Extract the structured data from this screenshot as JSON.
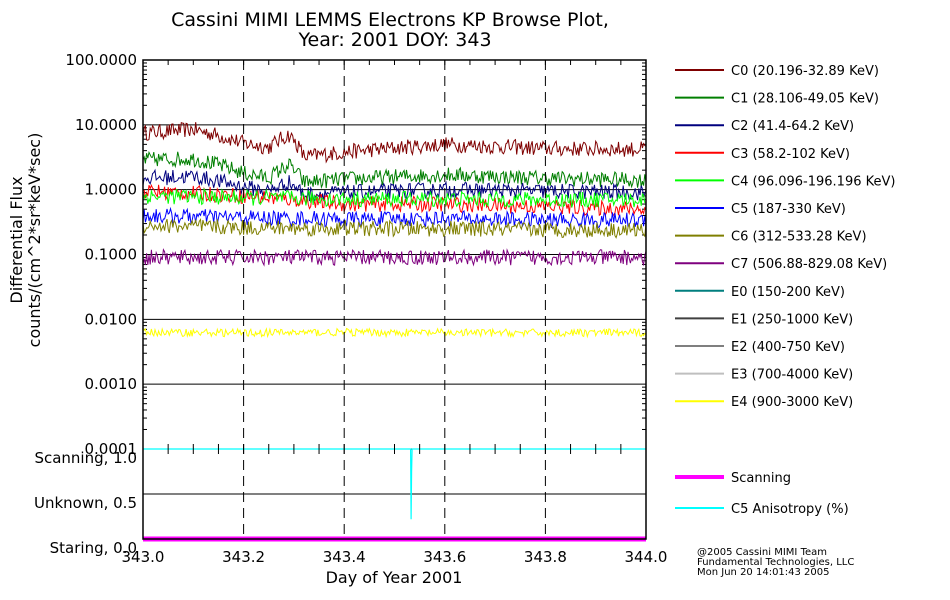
{
  "chart_data": [
    {
      "type": "line",
      "title": "Cassini MIMI LEMMS Electrons KP Browse Plot,",
      "subtitle": "Year: 2001 DOY: 343",
      "xlabel": "Day of Year 2001",
      "ylabel": "Differential Flux",
      "ylabel2": "counts/(cm^2*sr*keV*sec)",
      "xlim": [
        343.0,
        344.0
      ],
      "ylim": [
        0.0001,
        100.0
      ],
      "yscale": "log",
      "x_ticks": [
        "343.0",
        "343.2",
        "343.4",
        "343.6",
        "343.8",
        "344.0"
      ],
      "y_ticks": [
        "100.0000",
        "10.0000",
        "1.0000",
        "0.1000",
        "0.0100",
        "0.0010",
        "0.0001"
      ],
      "grid": true,
      "legend_position": "right",
      "series": [
        {
          "name": "C0 (20.196-32.89 KeV)",
          "color": "#7f0000",
          "x": [
            343.0,
            343.1,
            343.2,
            343.25,
            343.29,
            343.32,
            343.4,
            343.6,
            343.8,
            344.0
          ],
          "values": [
            7.5,
            8.5,
            5.2,
            4.5,
            7.0,
            3.2,
            3.8,
            5.0,
            4.3,
            4.2
          ]
        },
        {
          "name": "C1 (28.106-49.05 KeV)",
          "color": "#007f00",
          "x": [
            343.0,
            343.1,
            343.2,
            343.25,
            343.29,
            343.32,
            343.4,
            343.6,
            343.8,
            344.0
          ],
          "values": [
            2.9,
            3.0,
            1.8,
            1.5,
            2.4,
            1.3,
            1.45,
            1.7,
            1.5,
            1.4
          ]
        },
        {
          "name": "C2 (41.4-64.2 KeV)",
          "color": "#00007f",
          "x": [
            343.0,
            343.1,
            343.2,
            343.25,
            343.29,
            343.32,
            343.4,
            343.6,
            343.8,
            344.0
          ],
          "values": [
            1.5,
            1.6,
            1.1,
            0.95,
            1.3,
            0.85,
            0.9,
            1.0,
            0.95,
            0.9
          ]
        },
        {
          "name": "C3 (58.2-102 KeV)",
          "color": "#ff0000",
          "x": [
            343.0,
            343.2,
            343.4,
            343.6,
            343.8,
            344.0
          ],
          "values": [
            0.95,
            0.8,
            0.6,
            0.6,
            0.55,
            0.5
          ]
        },
        {
          "name": "C4 (96.096-196.196 KeV)",
          "color": "#00ff00",
          "x": [
            343.0,
            343.2,
            343.4,
            343.6,
            343.8,
            344.0
          ],
          "values": [
            0.8,
            0.75,
            0.72,
            0.72,
            0.7,
            0.7
          ]
        },
        {
          "name": "C5 (187-330 KeV)",
          "color": "#0000ff",
          "x": [
            343.0,
            343.2,
            343.4,
            343.6,
            343.8,
            344.0
          ],
          "values": [
            0.4,
            0.37,
            0.35,
            0.36,
            0.34,
            0.34
          ]
        },
        {
          "name": "C6 (312-533.28 KeV)",
          "color": "#7f7f00",
          "x": [
            343.0,
            343.2,
            343.4,
            343.6,
            343.8,
            344.0
          ],
          "values": [
            0.28,
            0.26,
            0.25,
            0.25,
            0.24,
            0.24
          ]
        },
        {
          "name": "C7 (506.88-829.08 KeV)",
          "color": "#7f007f",
          "x": [
            343.0,
            343.2,
            343.4,
            343.6,
            343.8,
            344.0
          ],
          "values": [
            0.09,
            0.09,
            0.09,
            0.09,
            0.09,
            0.09
          ]
        },
        {
          "name": "E0 (150-200 KeV)",
          "color": "#007f7f",
          "x": [],
          "values": []
        },
        {
          "name": "E1 (250-1000 KeV)",
          "color": "#404040",
          "x": [],
          "values": []
        },
        {
          "name": "E2 (400-750 KeV)",
          "color": "#7f7f7f",
          "x": [],
          "values": []
        },
        {
          "name": "E3 (700-4000 KeV)",
          "color": "#bfbfbf",
          "x": [],
          "values": []
        },
        {
          "name": "E4 (900-3000 KeV)",
          "color": "#ffff00",
          "x": [
            343.0,
            343.2,
            343.4,
            343.6,
            343.8,
            344.0
          ],
          "values": [
            0.0063,
            0.0062,
            0.0063,
            0.0062,
            0.0062,
            0.0062
          ]
        }
      ]
    },
    {
      "type": "line",
      "xlim": [
        343.0,
        344.0
      ],
      "ylim": [
        0.0,
        1.0
      ],
      "y_ticks": [
        "Scanning, 1.0",
        "Unknown, 0.5",
        "Staring, 0.0"
      ],
      "grid": true,
      "legend_position": "right",
      "series": [
        {
          "name": "Scanning",
          "color": "#ff00ff",
          "x": [
            343.0,
            344.0
          ],
          "values": [
            0.0,
            0.0
          ]
        },
        {
          "name": "C5 Anisotropy (%)",
          "color": "#00ffff",
          "x": [
            343.0,
            343.532,
            343.533,
            343.534,
            343.535,
            344.0
          ],
          "values": [
            1.0,
            1.0,
            0.22,
            0.75,
            1.0,
            1.0
          ]
        }
      ]
    }
  ],
  "credits": [
    "@2005 Cassini MIMI Team",
    "Fundamental Technologies, LLC",
    "Mon Jun 20 14:01:43 2005"
  ]
}
